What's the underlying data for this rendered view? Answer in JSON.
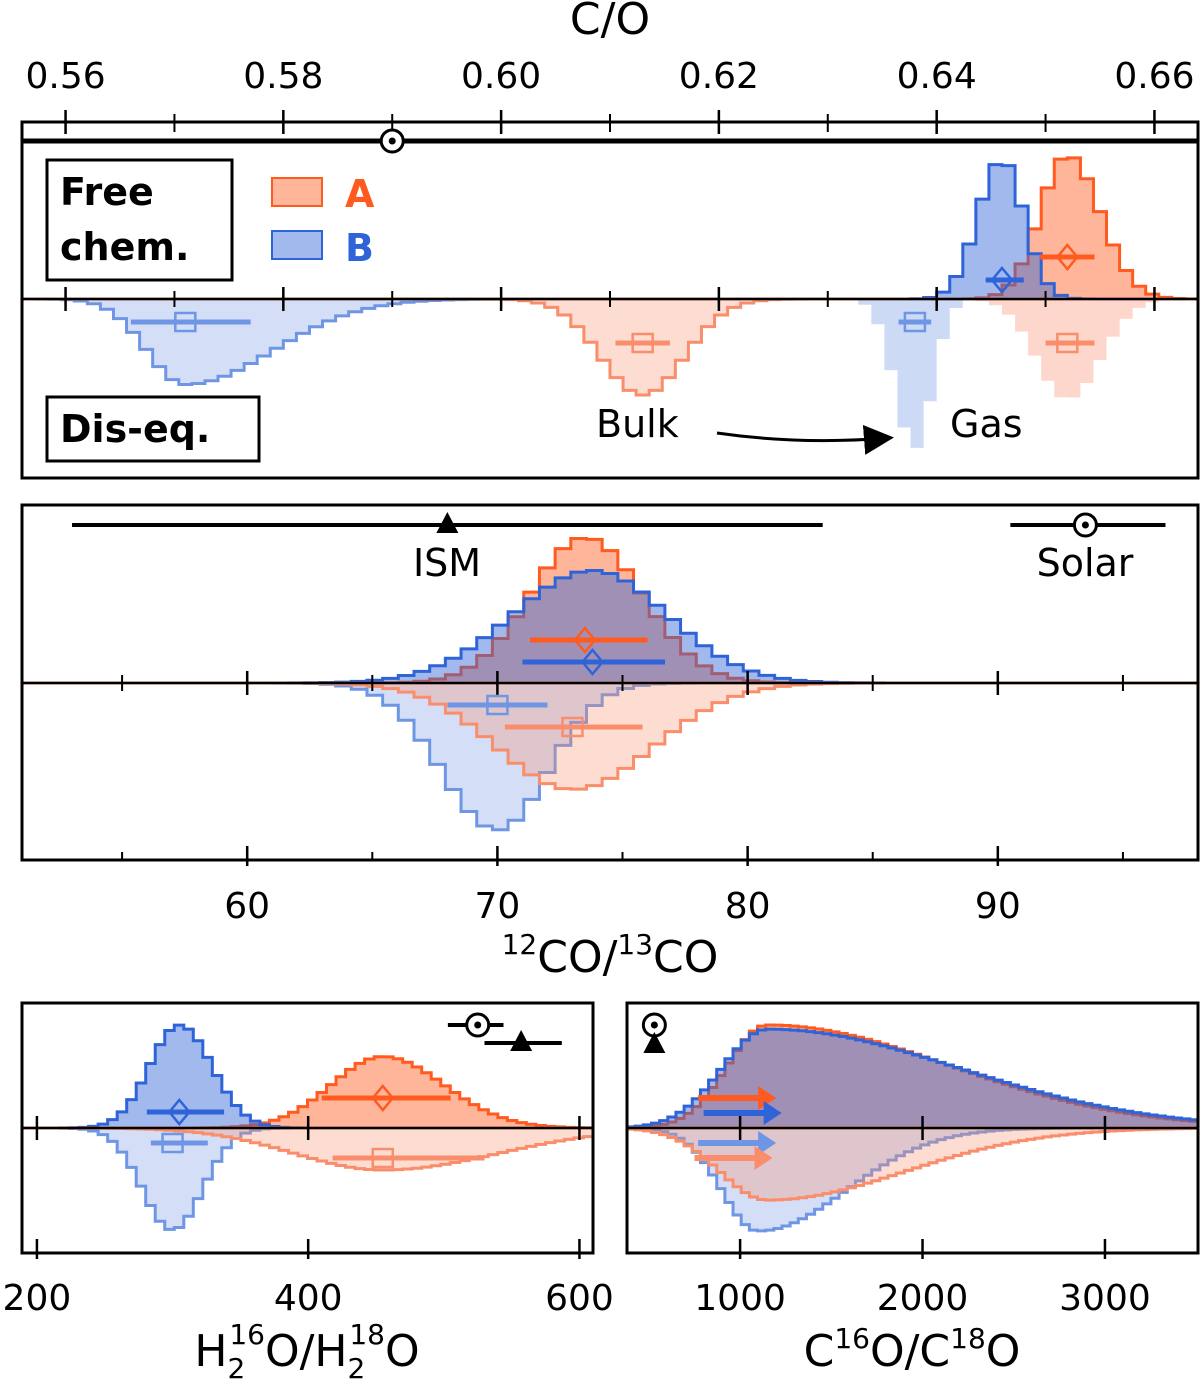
{
  "colors": {
    "A": "#FF5A1F",
    "B": "#2F63D8",
    "A_light": "#FA8D6B",
    "B_light": "#6F96E4",
    "reference": "#000000"
  },
  "legend": {
    "free_label_1": "Free",
    "free_label_2": "chem.",
    "diseq_label": "Dis-eq.",
    "A": "A",
    "B": "B"
  },
  "annotations": {
    "bulk": "Bulk",
    "gas": "Gas",
    "ism": "ISM",
    "solar": "Solar"
  },
  "chart_data": [
    {
      "type": "histogram",
      "xlabel": "C/O",
      "xlim": [
        0.556,
        0.664
      ],
      "xticks": [
        0.56,
        0.58,
        0.6,
        0.62,
        0.64,
        0.66
      ],
      "xtick_labels": [
        "0.56",
        "0.58",
        "0.60",
        "0.62",
        "0.64",
        "0.66"
      ],
      "tick_axis": "top",
      "references": [
        {
          "name": "solar",
          "value": 0.59,
          "lo": 0.556,
          "hi": 0.664,
          "marker": "sun"
        }
      ],
      "series": [
        {
          "name": "A",
          "method": "Free chem.",
          "side": "up",
          "median": 0.652,
          "lo": 0.6495,
          "hi": 0.6545,
          "sigma_left": 0.0025,
          "sigma_right": 0.003,
          "peak": 0.96,
          "marker": "diamond"
        },
        {
          "name": "B",
          "method": "Free chem.",
          "side": "up",
          "median": 0.646,
          "lo": 0.6445,
          "hi": 0.648,
          "sigma_left": 0.0022,
          "sigma_right": 0.002,
          "peak": 0.93,
          "marker": "diamond"
        },
        {
          "name": "B",
          "method": "Dis-eq. bulk",
          "side": "down",
          "median": 0.571,
          "lo": 0.566,
          "hi": 0.577,
          "sigma_left": 0.0035,
          "sigma_right": 0.008,
          "peak": 0.57,
          "marker": "square"
        },
        {
          "name": "A",
          "method": "Dis-eq. bulk",
          "side": "down",
          "median": 0.613,
          "lo": 0.6105,
          "hi": 0.6155,
          "sigma_left": 0.0038,
          "sigma_right": 0.0038,
          "peak": 0.64,
          "marker": "square"
        },
        {
          "name": "B",
          "method": "Dis-eq. gas",
          "side": "down",
          "median": 0.638,
          "lo": 0.6365,
          "hi": 0.6395,
          "sigma_left": 0.0018,
          "sigma_right": 0.0016,
          "peak": 1.0,
          "marker": "square",
          "outline": false
        },
        {
          "name": "A",
          "method": "Dis-eq. gas",
          "side": "down",
          "median": 0.652,
          "lo": 0.65,
          "hi": 0.6545,
          "sigma_left": 0.0028,
          "sigma_right": 0.003,
          "peak": 0.67,
          "marker": "square",
          "outline": false
        }
      ]
    },
    {
      "type": "histogram",
      "xlabel": "12CO/13CO",
      "xlabel_parts": [
        "12",
        "CO/",
        "13",
        "CO"
      ],
      "xlim": [
        51,
        98
      ],
      "xticks": [
        60,
        70,
        80,
        90
      ],
      "xtick_labels": [
        "60",
        "70",
        "80",
        "90"
      ],
      "minor_step": 5,
      "tick_axis": "bottom",
      "references": [
        {
          "name": "ISM",
          "value": 68,
          "lo": 53,
          "hi": 83,
          "marker": "triangle"
        },
        {
          "name": "Solar",
          "value": 93.5,
          "lo": 90.5,
          "hi": 96.7,
          "marker": "sun"
        }
      ],
      "series": [
        {
          "name": "A",
          "method": "Free chem.",
          "side": "up",
          "median": 73.5,
          "lo": 71.3,
          "hi": 76.0,
          "sigma_left": 2.2,
          "sigma_right": 2.3,
          "peak": 0.97,
          "marker": "diamond"
        },
        {
          "name": "B",
          "method": "Free chem.",
          "side": "up",
          "median": 73.8,
          "lo": 71.0,
          "hi": 76.7,
          "sigma_left": 3.2,
          "sigma_right": 3.0,
          "peak": 0.75,
          "marker": "diamond"
        },
        {
          "name": "B",
          "method": "Dis-eq.",
          "side": "down",
          "median": 70.0,
          "lo": 68.0,
          "hi": 72.0,
          "sigma_left": 2.2,
          "sigma_right": 2.0,
          "peak": 0.98,
          "marker": "square"
        },
        {
          "name": "A",
          "method": "Dis-eq.",
          "side": "down",
          "median": 73.0,
          "lo": 70.3,
          "hi": 75.8,
          "sigma_left": 3.0,
          "sigma_right": 3.2,
          "peak": 0.71,
          "marker": "square"
        }
      ]
    },
    {
      "type": "histogram",
      "xlabel": "H2 16O/H2 18O",
      "xlim": [
        189,
        610
      ],
      "xticks": [
        200,
        400,
        600
      ],
      "xtick_labels": [
        "200",
        "400",
        "600"
      ],
      "tick_axis": "bottom",
      "references": [
        {
          "name": "solar",
          "value": 525,
          "lo": 503,
          "hi": 544,
          "marker": "sun"
        },
        {
          "name": "ISM",
          "value": 557,
          "lo": 530,
          "hi": 587,
          "marker": "triangle"
        }
      ],
      "series": [
        {
          "name": "A",
          "method": "Free chem.",
          "side": "up",
          "median": 455,
          "lo": 410,
          "hi": 505,
          "sigma_left": 38,
          "sigma_right": 45,
          "peak": 0.68,
          "marker": "diamond"
        },
        {
          "name": "B",
          "method": "Free chem.",
          "side": "up",
          "median": 305,
          "lo": 281,
          "hi": 338,
          "sigma_left": 22,
          "sigma_right": 24,
          "peak": 0.98,
          "marker": "diamond"
        },
        {
          "name": "B",
          "method": "Dis-eq.",
          "side": "down",
          "median": 300,
          "lo": 284,
          "hi": 326,
          "sigma_left": 22,
          "sigma_right": 22,
          "peak": 0.97,
          "marker": "square"
        },
        {
          "name": "A",
          "method": "Dis-eq.",
          "side": "down",
          "median": 455,
          "lo": 418,
          "hi": 530,
          "sigma_left": 65,
          "sigma_right": 85,
          "peak": 0.4,
          "marker": "square"
        }
      ]
    },
    {
      "type": "histogram",
      "xlabel": "C16O/C18O",
      "xlim": [
        380,
        3510
      ],
      "xticks": [
        1000,
        2000,
        3000
      ],
      "xtick_labels": [
        "1000",
        "2000",
        "3000"
      ],
      "tick_axis": "bottom",
      "references": [
        {
          "name": "solar",
          "value": 530,
          "marker": "sun"
        },
        {
          "name": "ISM",
          "value": 530,
          "marker": "triangle"
        }
      ],
      "series": [
        {
          "name": "A",
          "method": "Free chem.",
          "side": "up",
          "lower_limit": 770,
          "sigma_left": 220,
          "sigma_right": 1000,
          "mode": 1150,
          "peak": 1.0,
          "marker": "arrow"
        },
        {
          "name": "B",
          "method": "Free chem.",
          "side": "up",
          "lower_limit": 800,
          "sigma_left": 250,
          "sigma_right": 1050,
          "mode": 1150,
          "peak": 0.96,
          "marker": "arrow"
        },
        {
          "name": "B",
          "method": "Dis-eq.",
          "side": "down",
          "lower_limit": 770,
          "sigma_left": 200,
          "sigma_right": 480,
          "mode": 1100,
          "peak": 1.0,
          "marker": "arrow"
        },
        {
          "name": "A",
          "method": "Dis-eq.",
          "side": "down",
          "lower_limit": 750,
          "sigma_left": 260,
          "sigma_right": 750,
          "mode": 1150,
          "peak": 0.7,
          "marker": "arrow"
        }
      ]
    }
  ]
}
